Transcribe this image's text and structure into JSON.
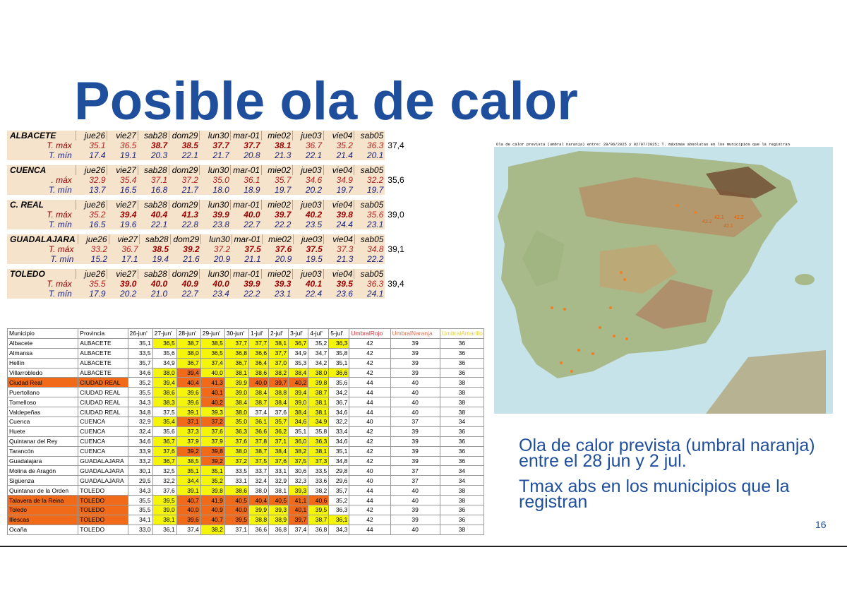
{
  "title": "Posible ola de calor",
  "forecast_blocks": [
    {
      "name": "ALBACETE",
      "days": [
        "jue26",
        "vie27",
        "sab28",
        "dom29",
        "lun30",
        "mar-01",
        "mie02",
        "jue03",
        "vie04",
        "sab05"
      ],
      "max_label": "T. máx",
      "min_label": "T. mín",
      "tmax": [
        "35.1",
        "36.5",
        "38.7",
        "38.5",
        "37.7",
        "37.7",
        "38.1",
        "36.7",
        "35.2",
        "36.3"
      ],
      "tmin": [
        "17.4",
        "19.1",
        "20.3",
        "22.1",
        "21.7",
        "20.8",
        "21.3",
        "22.1",
        "21.4",
        "20.1"
      ],
      "extra": "37,4"
    },
    {
      "name": "CUENCA",
      "days": [
        "jue26",
        "vie27",
        "sab28",
        "dom29",
        "lun30",
        "mar-01",
        "mie02",
        "jue03",
        "vie04",
        "sab05"
      ],
      "max_label": ". máx",
      "min_label": "T. mín",
      "tmax": [
        "32.9",
        "35.4",
        "37.1",
        "37.2",
        "35.0",
        "36.1",
        "35.7",
        "34.6",
        "34.9",
        "32.2"
      ],
      "tmin": [
        "13.7",
        "16.5",
        "16.8",
        "21.7",
        "18.0",
        "18.9",
        "19.7",
        "20.2",
        "19.7",
        "19.7"
      ],
      "extra": "35,6"
    },
    {
      "name": "C. REAL",
      "days": [
        "jue26",
        "vie27",
        "sab28",
        "dom29",
        "lun30",
        "mar-01",
        "mie02",
        "jue03",
        "vie04",
        "sab05"
      ],
      "max_label": "T. máx",
      "min_label": "T. mín",
      "tmax": [
        "35.2",
        "39.4",
        "40.4",
        "41.3",
        "39.9",
        "40.0",
        "39.7",
        "40.2",
        "39.8",
        "35.6"
      ],
      "tmin": [
        "16.5",
        "19.6",
        "22.1",
        "22.8",
        "23.8",
        "22.7",
        "22.2",
        "23.5",
        "24.4",
        "23.1"
      ],
      "extra": "39,0"
    },
    {
      "name": "GUADALAJARA",
      "days": [
        "jue26",
        "vie27",
        "sab28",
        "dom29",
        "lun30",
        "mar-01",
        "mie02",
        "jue03",
        "vie04",
        "sab05"
      ],
      "max_label": "T. máx",
      "min_label": "T. mín",
      "tmax": [
        "33.2",
        "36.7",
        "38.5",
        "39.2",
        "37.2",
        "37.5",
        "37.6",
        "37.5",
        "37.3",
        "34.8"
      ],
      "tmin": [
        "15.2",
        "17.1",
        "19.4",
        "21.6",
        "20.9",
        "21.1",
        "20.9",
        "19.5",
        "21.3",
        "22.2"
      ],
      "extra": "39,1"
    },
    {
      "name": "TOLEDO",
      "days": [
        "jue26",
        "vie27",
        "sab28",
        "dom29",
        "lun30",
        "mar-01",
        "mie02",
        "jue03",
        "vie04",
        "sab05"
      ],
      "max_label": "T. máx",
      "min_label": "T. mín",
      "tmax": [
        "35.5",
        "39.0",
        "40.0",
        "40.9",
        "40.0",
        "39.9",
        "39.3",
        "40.1",
        "39.5",
        "36.3"
      ],
      "tmin": [
        "17.9",
        "20.2",
        "21.0",
        "22.7",
        "23.4",
        "22.2",
        "23.1",
        "22.4",
        "23.6",
        "24.1"
      ],
      "extra": "39,4"
    }
  ],
  "municipios_table": {
    "headers": [
      "Municipio",
      "Provincia",
      "26-jun'",
      "27-jun'",
      "28-jun'",
      "29-jun'",
      "30-jun'",
      "1-jul'",
      "2-jul'",
      "3-jul'",
      "4-jul'",
      "5-jul'",
      "UmbralRojo",
      "UmbralNaranja",
      "UmbralAmarillo"
    ],
    "header_colors": {
      "rojo": "#e0303a",
      "naranja": "#e07050",
      "amarillo": "#e0d040"
    },
    "rows": [
      {
        "municipio": "Albacete",
        "provincia": "ALBACETE",
        "v": [
          "35,1",
          "36,5",
          "38,7",
          "38,5",
          "37,7",
          "37,7",
          "38,1",
          "36,7",
          "35,2",
          "36,3"
        ],
        "c": [
          "",
          "y",
          "y",
          "y",
          "y",
          "y",
          "y",
          "y",
          "",
          "y"
        ],
        "u": [
          "42",
          "39",
          "36"
        ],
        "mc": "",
        "pc": ""
      },
      {
        "municipio": "Almansa",
        "provincia": "ALBACETE",
        "v": [
          "33,5",
          "35,6",
          "38,0",
          "36,5",
          "36,8",
          "36,6",
          "37,7",
          "34,9",
          "34,7",
          "35,8"
        ],
        "c": [
          "",
          "",
          "y",
          "y",
          "y",
          "y",
          "y",
          "",
          "",
          ""
        ],
        "u": [
          "42",
          "39",
          "36"
        ],
        "mc": "",
        "pc": ""
      },
      {
        "municipio": "Hellín",
        "provincia": "ALBACETE",
        "v": [
          "35,7",
          "34,9",
          "36,7",
          "37,4",
          "36,7",
          "36,4",
          "37,0",
          "35,3",
          "34,2",
          "35,1"
        ],
        "c": [
          "",
          "",
          "y",
          "y",
          "y",
          "y",
          "y",
          "",
          "",
          ""
        ],
        "u": [
          "42",
          "39",
          "36"
        ],
        "mc": "",
        "pc": ""
      },
      {
        "municipio": "Villarrobledo",
        "provincia": "ALBACETE",
        "v": [
          "34,6",
          "38,0",
          "39,4",
          "40,0",
          "38,1",
          "38,6",
          "38,2",
          "38,4",
          "38,0",
          "36,6"
        ],
        "c": [
          "",
          "y",
          "o",
          "y",
          "y",
          "y",
          "y",
          "y",
          "y",
          "y"
        ],
        "u": [
          "42",
          "39",
          "36"
        ],
        "mc": "",
        "pc": ""
      },
      {
        "municipio": "Ciudad Real",
        "provincia": "CIUDAD REAL",
        "v": [
          "35,2",
          "39,4",
          "40,4",
          "41,3",
          "39,9",
          "40,0",
          "39,7",
          "40,2",
          "39,8",
          "35,6"
        ],
        "c": [
          "",
          "y",
          "o",
          "o",
          "y",
          "o",
          "o",
          "o",
          "y",
          ""
        ],
        "u": [
          "44",
          "40",
          "38"
        ],
        "mc": "o",
        "pc": "o"
      },
      {
        "municipio": "Puertollano",
        "provincia": "CIUDAD REAL",
        "v": [
          "35,5",
          "38,6",
          "39,6",
          "40,1",
          "39,0",
          "38,4",
          "38,8",
          "39,4",
          "38,7",
          "34,2"
        ],
        "c": [
          "",
          "y",
          "y",
          "o",
          "y",
          "y",
          "y",
          "y",
          "y",
          ""
        ],
        "u": [
          "44",
          "40",
          "38"
        ],
        "mc": "",
        "pc": ""
      },
      {
        "municipio": "Tomelloso",
        "provincia": "CIUDAD REAL",
        "v": [
          "34,3",
          "38,3",
          "39,6",
          "40,2",
          "38,4",
          "38,7",
          "38,4",
          "39,0",
          "38,1",
          "36,7"
        ],
        "c": [
          "",
          "y",
          "y",
          "o",
          "y",
          "y",
          "y",
          "y",
          "y",
          ""
        ],
        "u": [
          "44",
          "40",
          "38"
        ],
        "mc": "",
        "pc": ""
      },
      {
        "municipio": "Valdepeñas",
        "provincia": "CIUDAD REAL",
        "v": [
          "34,8",
          "37,5",
          "39,1",
          "39,3",
          "38,0",
          "37,4",
          "37,6",
          "38,4",
          "38,1",
          "34,6"
        ],
        "c": [
          "",
          "",
          "y",
          "y",
          "y",
          "",
          "",
          "y",
          "y",
          ""
        ],
        "u": [
          "44",
          "40",
          "38"
        ],
        "mc": "",
        "pc": ""
      },
      {
        "municipio": "Cuenca",
        "provincia": "CUENCA",
        "v": [
          "32,9",
          "35,4",
          "37,1",
          "37,2",
          "35,0",
          "36,1",
          "35,7",
          "34,6",
          "34,9",
          "32,2"
        ],
        "c": [
          "",
          "y",
          "o",
          "o",
          "y",
          "y",
          "y",
          "y",
          "y",
          ""
        ],
        "u": [
          "40",
          "37",
          "34"
        ],
        "mc": "",
        "pc": ""
      },
      {
        "municipio": "Huete",
        "provincia": "CUENCA",
        "v": [
          "32,4",
          "35,6",
          "37,3",
          "37,6",
          "36,3",
          "36,6",
          "36,2",
          "35,1",
          "35,8",
          "33,4"
        ],
        "c": [
          "",
          "",
          "y",
          "y",
          "y",
          "y",
          "y",
          "",
          "",
          ""
        ],
        "u": [
          "42",
          "39",
          "36"
        ],
        "mc": "",
        "pc": ""
      },
      {
        "municipio": "Quintanar del Rey",
        "provincia": "CUENCA",
        "v": [
          "34,6",
          "36,7",
          "37,9",
          "37,9",
          "37,6",
          "37,8",
          "37,1",
          "36,0",
          "36,3",
          "34,6"
        ],
        "c": [
          "",
          "y",
          "y",
          "y",
          "y",
          "y",
          "y",
          "y",
          "y",
          ""
        ],
        "u": [
          "42",
          "39",
          "36"
        ],
        "mc": "",
        "pc": ""
      },
      {
        "municipio": "Tarancón",
        "provincia": "CUENCA",
        "v": [
          "33,9",
          "37,6",
          "39,2",
          "39,8",
          "38,0",
          "38,7",
          "38,4",
          "38,2",
          "38,1",
          "35,1"
        ],
        "c": [
          "",
          "y",
          "o",
          "o",
          "y",
          "y",
          "y",
          "y",
          "y",
          ""
        ],
        "u": [
          "42",
          "39",
          "36"
        ],
        "mc": "",
        "pc": ""
      },
      {
        "municipio": "Guadalajara",
        "provincia": "GUADALAJARA",
        "v": [
          "33,2",
          "36,7",
          "38,5",
          "39,2",
          "37,2",
          "37,5",
          "37,6",
          "37,5",
          "37,3",
          "34,8"
        ],
        "c": [
          "",
          "y",
          "y",
          "o",
          "y",
          "y",
          "y",
          "y",
          "y",
          ""
        ],
        "u": [
          "42",
          "39",
          "36"
        ],
        "mc": "",
        "pc": ""
      },
      {
        "municipio": "Molina de Aragón",
        "provincia": "GUADALAJARA",
        "v": [
          "30,1",
          "32,5",
          "35,1",
          "35,1",
          "33,5",
          "33,7",
          "33,1",
          "30,6",
          "33,5",
          "29,8"
        ],
        "c": [
          "",
          "",
          "y",
          "y",
          "",
          "",
          "",
          "",
          "",
          ""
        ],
        "u": [
          "40",
          "37",
          "34"
        ],
        "mc": "",
        "pc": ""
      },
      {
        "municipio": "Sigüenza",
        "provincia": "GUADALAJARA",
        "v": [
          "29,5",
          "32,2",
          "34,4",
          "35,2",
          "33,1",
          "32,4",
          "32,9",
          "32,3",
          "33,6",
          "29,6"
        ],
        "c": [
          "",
          "",
          "y",
          "y",
          "",
          "",
          "",
          "",
          "",
          ""
        ],
        "u": [
          "40",
          "37",
          "34"
        ],
        "mc": "",
        "pc": ""
      },
      {
        "municipio": "Quintanar de la Orden",
        "provincia": "TOLEDO",
        "v": [
          "34,3",
          "37,6",
          "39,1",
          "39,8",
          "38,6",
          "38,0",
          "38,1",
          "39,3",
          "38,2",
          "35,7"
        ],
        "c": [
          "",
          "",
          "y",
          "y",
          "y",
          "",
          "",
          "y",
          "",
          ""
        ],
        "u": [
          "44",
          "40",
          "38"
        ],
        "mc": "",
        "pc": ""
      },
      {
        "municipio": "Talavera de la Reina",
        "provincia": "TOLEDO",
        "v": [
          "35,5",
          "39,5",
          "40,7",
          "41,9",
          "40,5",
          "40,4",
          "40,5",
          "41,1",
          "40,6",
          "35,2"
        ],
        "c": [
          "",
          "y",
          "o",
          "o",
          "o",
          "o",
          "o",
          "o",
          "o",
          ""
        ],
        "u": [
          "44",
          "40",
          "38"
        ],
        "mc": "o",
        "pc": "o"
      },
      {
        "municipio": "Toledo",
        "provincia": "TOLEDO",
        "v": [
          "35,5",
          "39,0",
          "40,0",
          "40,9",
          "40,0",
          "39,9",
          "39,3",
          "40,1",
          "39,5",
          "36,3"
        ],
        "c": [
          "",
          "y",
          "o",
          "o",
          "o",
          "y",
          "y",
          "o",
          "y",
          ""
        ],
        "u": [
          "42",
          "39",
          "36"
        ],
        "mc": "o",
        "pc": "o"
      },
      {
        "municipio": "Illescas",
        "provincia": "TOLEDO",
        "v": [
          "34,1",
          "38,1",
          "39,6",
          "40,7",
          "39,5",
          "38,8",
          "38,9",
          "39,7",
          "38,7",
          "36,1"
        ],
        "c": [
          "",
          "y",
          "o",
          "o",
          "o",
          "y",
          "y",
          "o",
          "y",
          "y"
        ],
        "u": [
          "42",
          "39",
          "36"
        ],
        "mc": "o",
        "pc": "o"
      },
      {
        "municipio": "Ocaña",
        "provincia": "TOLEDO",
        "v": [
          "33,0",
          "36,1",
          "37,4",
          "38,2",
          "37,1",
          "36,6",
          "36,8",
          "37,4",
          "36,8",
          "34,3"
        ],
        "c": [
          "",
          "",
          "",
          "y",
          "",
          "",
          "",
          "",
          "",
          ""
        ],
        "u": [
          "44",
          "40",
          "38"
        ],
        "mc": "",
        "pc": ""
      }
    ]
  },
  "map": {
    "caption": "Ola de calor prevista (umbral naranja) entre: 28/06/2025 y 02/07/2025; T. máximas absolutas en los municipios que la registran",
    "labels": [
      "42.2",
      "42.1",
      "42.2",
      "42.1"
    ]
  },
  "description": {
    "line1": "Ola de calor prevista (umbral naranja) entre el 28 jun y 2 jul.",
    "line2": "Tmax abs en los municipios que la registran"
  },
  "page_number": "16",
  "colors": {
    "title": "#1f4e9c",
    "orange": "#f06a1a",
    "yellow": "#f5f50a",
    "block_bg": "#f6e3cc"
  }
}
